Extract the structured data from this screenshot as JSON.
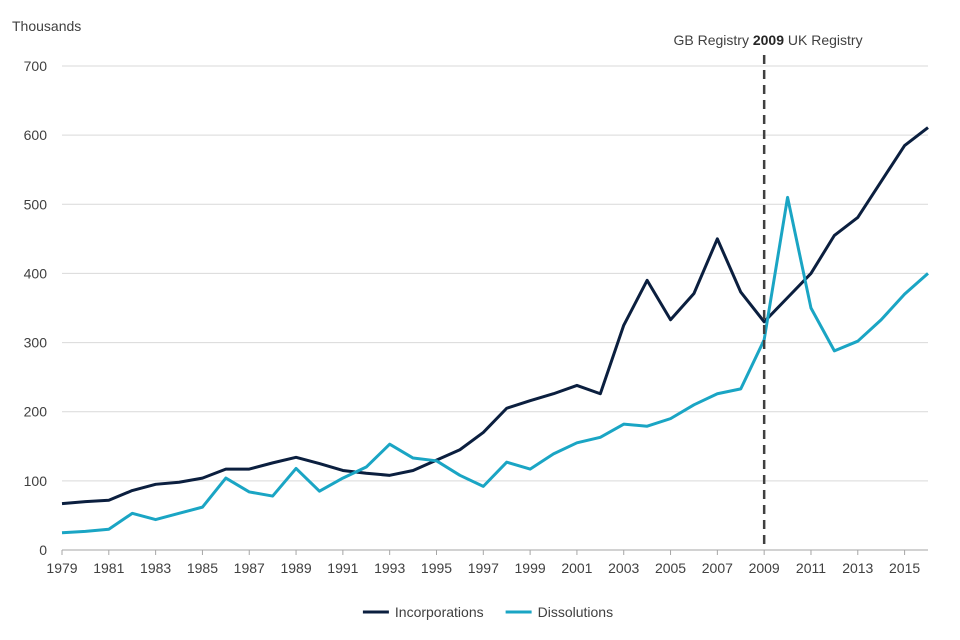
{
  "chart_data": {
    "type": "line",
    "ylabel": "Thousands",
    "ylim": [
      0,
      700
    ],
    "yticks": [
      0,
      100,
      200,
      300,
      400,
      500,
      600,
      700
    ],
    "xlim": [
      1979,
      2016
    ],
    "xticks": [
      1979,
      1981,
      1983,
      1985,
      1987,
      1989,
      1991,
      1993,
      1995,
      1997,
      1999,
      2001,
      2003,
      2005,
      2007,
      2009,
      2011,
      2013,
      2015
    ],
    "x": [
      1979,
      1980,
      1981,
      1982,
      1983,
      1984,
      1985,
      1986,
      1987,
      1988,
      1989,
      1990,
      1991,
      1992,
      1993,
      1994,
      1995,
      1996,
      1997,
      1998,
      1999,
      2000,
      2001,
      2002,
      2003,
      2004,
      2005,
      2006,
      2007,
      2008,
      2009,
      2010,
      2011,
      2012,
      2013,
      2014,
      2015,
      2016
    ],
    "series": [
      {
        "name": "Incorporations",
        "color": "#0b1f3f",
        "values": [
          67,
          70,
          72,
          86,
          95,
          98,
          104,
          117,
          117,
          126,
          134,
          125,
          115,
          111,
          108,
          115,
          130,
          145,
          170,
          205,
          216,
          226,
          238,
          226,
          325,
          390,
          333,
          371,
          450,
          373,
          330,
          365,
          400,
          455,
          481,
          533,
          585,
          611
        ]
      },
      {
        "name": "Dissolutions",
        "color": "#1aa5c4",
        "values": [
          25,
          27,
          30,
          53,
          44,
          53,
          62,
          104,
          84,
          78,
          118,
          85,
          104,
          120,
          153,
          133,
          129,
          108,
          92,
          127,
          117,
          139,
          155,
          163,
          182,
          179,
          190,
          210,
          226,
          233,
          304,
          510,
          350,
          288,
          302,
          333,
          370,
          400
        ]
      }
    ],
    "annotation": {
      "x": 2009,
      "left_text": "GB Registry ",
      "bold_text": "2009",
      "right_text": " UK Registry",
      "line_color": "#404040"
    },
    "grid": true,
    "legend": "bottom-center"
  }
}
